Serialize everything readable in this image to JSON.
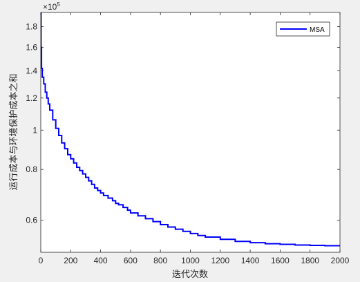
{
  "chart_data": {
    "type": "line",
    "xlabel": "迭代次数",
    "ylabel": "运行成本与环境保护成本之和",
    "y_multiplier": "× 10^5",
    "y_scale": "log",
    "xlim": [
      0,
      2000
    ],
    "ylim": [
      0.5,
      1.95
    ],
    "xticks": [
      0,
      200,
      400,
      600,
      800,
      1000,
      1200,
      1400,
      1600,
      1800,
      2000
    ],
    "yticks": [
      0.6,
      0.8,
      1,
      1.2,
      1.4,
      1.6,
      1.8
    ],
    "ytick_labels": [
      "0.6",
      "0.8",
      "1",
      "1.2",
      "1.4",
      "1.6",
      "1.8"
    ],
    "grid": false,
    "legend_position": "top-right",
    "series": [
      {
        "name": "MSA",
        "color": "#0000ff",
        "x": [
          0,
          2,
          5,
          10,
          20,
          30,
          40,
          50,
          60,
          80,
          100,
          120,
          140,
          160,
          180,
          200,
          220,
          240,
          260,
          280,
          300,
          320,
          340,
          360,
          380,
          400,
          420,
          450,
          480,
          500,
          520,
          550,
          580,
          600,
          650,
          700,
          750,
          800,
          850,
          900,
          950,
          1000,
          1050,
          1100,
          1200,
          1300,
          1400,
          1500,
          1600,
          1700,
          1800,
          1900,
          2000
        ],
        "y": [
          1.95,
          1.6,
          1.42,
          1.35,
          1.3,
          1.24,
          1.2,
          1.16,
          1.12,
          1.06,
          1.01,
          0.97,
          0.93,
          0.9,
          0.87,
          0.85,
          0.83,
          0.81,
          0.795,
          0.78,
          0.765,
          0.75,
          0.735,
          0.72,
          0.71,
          0.7,
          0.69,
          0.68,
          0.67,
          0.66,
          0.655,
          0.645,
          0.635,
          0.625,
          0.615,
          0.605,
          0.595,
          0.585,
          0.577,
          0.57,
          0.563,
          0.556,
          0.55,
          0.545,
          0.538,
          0.532,
          0.528,
          0.525,
          0.523,
          0.521,
          0.52,
          0.519,
          0.518
        ]
      }
    ]
  }
}
